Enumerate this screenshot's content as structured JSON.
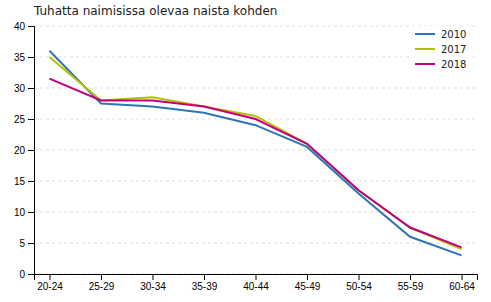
{
  "chart_data": {
    "type": "line",
    "title": "Tuhatta naimisissa olevaa naista kohden",
    "categories": [
      "20-24",
      "25-29",
      "30-34",
      "35-39",
      "40-44",
      "45-49",
      "50-54",
      "55-59",
      "60-64"
    ],
    "series": [
      {
        "name": "2010",
        "color": "#2e75b6",
        "values": [
          36.0,
          27.5,
          27.0,
          26.0,
          24.0,
          20.5,
          13.0,
          6.0,
          3.0
        ]
      },
      {
        "name": "2017",
        "color": "#b5c000",
        "values": [
          35.0,
          28.0,
          28.5,
          27.0,
          25.5,
          21.0,
          13.5,
          7.5,
          4.0
        ]
      },
      {
        "name": "2018",
        "color": "#c00080",
        "values": [
          31.5,
          28.0,
          28.0,
          27.0,
          25.0,
          21.0,
          13.5,
          7.5,
          4.3
        ]
      }
    ],
    "ylim": [
      0,
      40
    ],
    "yticks": [
      0,
      5,
      10,
      15,
      20,
      25,
      30,
      35,
      40
    ],
    "grid": true,
    "legend": "upper right"
  }
}
